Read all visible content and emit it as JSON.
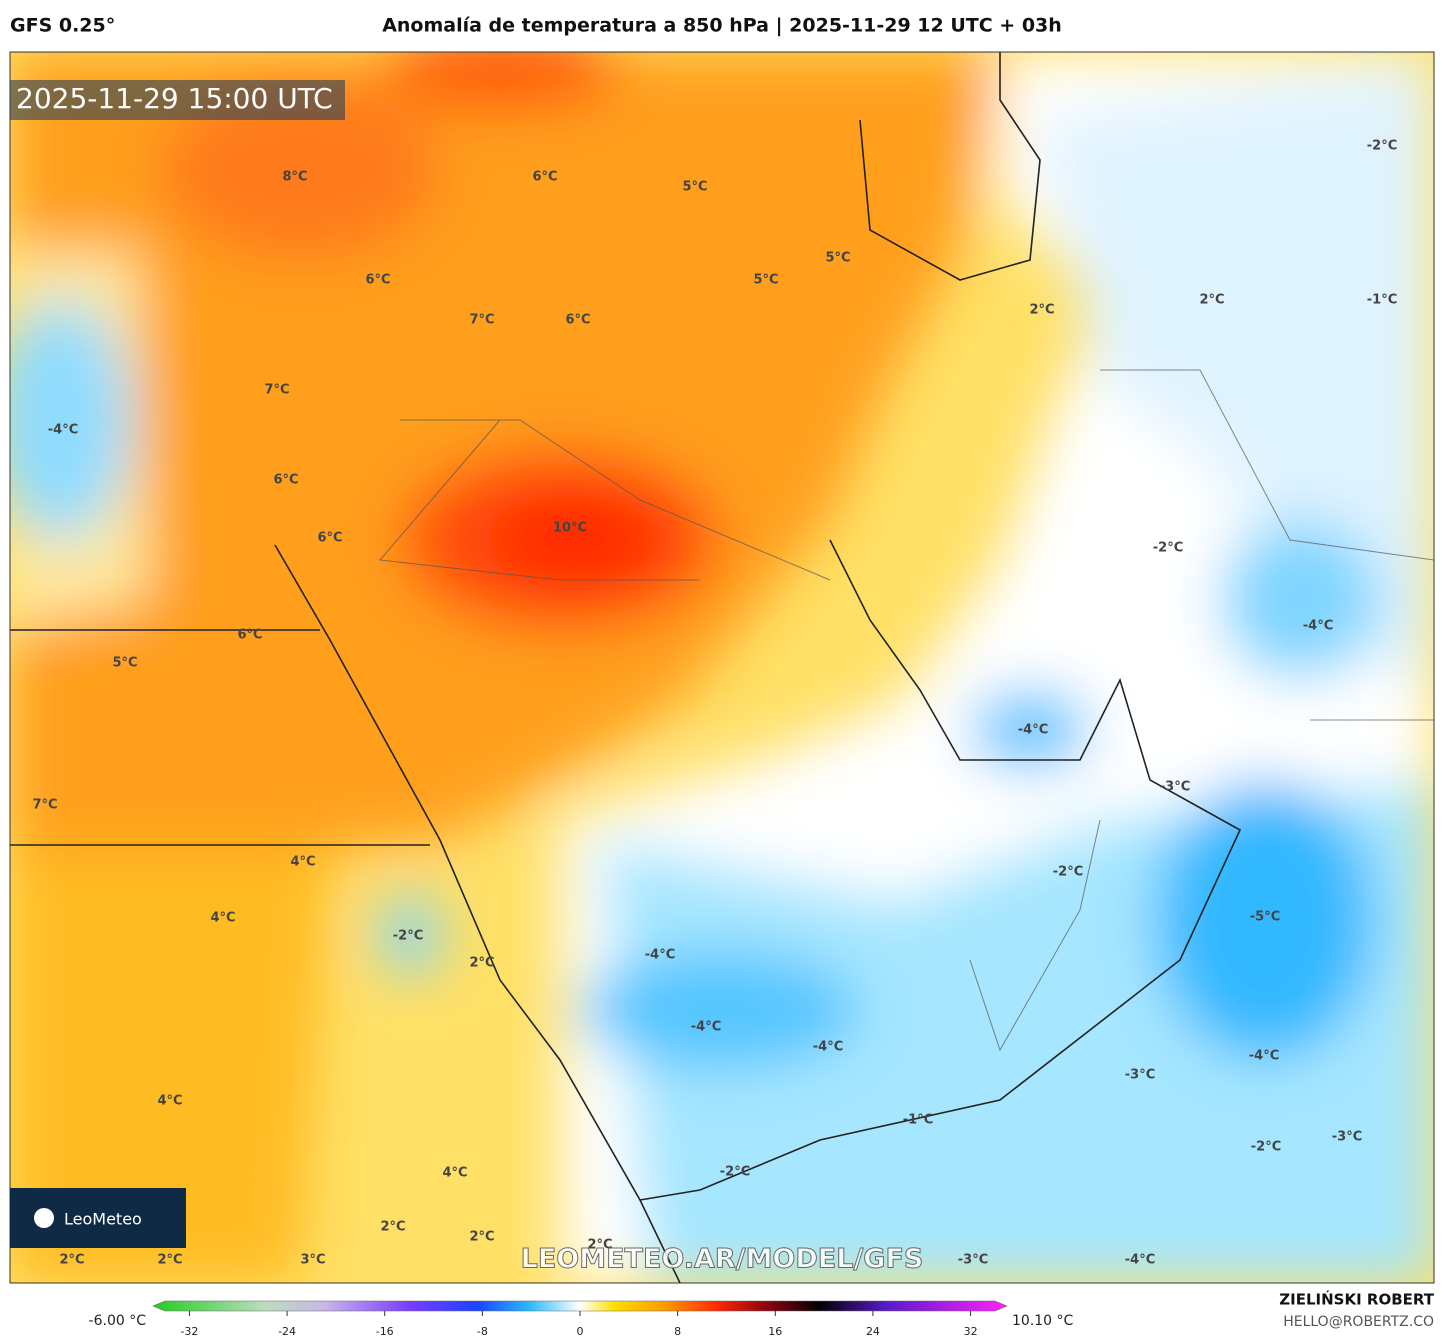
{
  "header": {
    "model": "GFS 0.25°",
    "title": "Anomalía de temperatura a 850 hPa | 2025-11-29 12 UTC + 03h"
  },
  "timestamp": "2025-11-29 15:00 UTC",
  "watermark": "LEOMETEO.AR/MODEL/GFS",
  "logo": "LeoMeteo",
  "contour_labels": [
    "8°C",
    "6°C",
    "5°C",
    "6°C",
    "5°C",
    "5°C",
    "2°C",
    "2°C",
    "-2°C",
    "-1°C",
    "7°C",
    "6°C",
    "7°C",
    "-4°C",
    "6°C",
    "10°C",
    "6°C",
    "-2°C",
    "-4°C",
    "6°C",
    "5°C",
    "-4°C",
    "-3°C",
    "7°C",
    "4°C",
    "-2°C",
    "4°C",
    "-5°C",
    "-2°C",
    "-4°C",
    "2°C",
    "-4°C",
    "-4°C",
    "-4°C",
    "-3°C",
    "4°C",
    "-1°C",
    "-2°C",
    "-3°C",
    "4°C",
    "-2°C",
    "2°C",
    "2°C",
    "2°C",
    "2°C",
    "3°C",
    "2°C",
    "-3°C",
    "-4°C"
  ],
  "colorbar": {
    "min_label": "-6.00 °C",
    "max_label": "10.10 °C",
    "lim": [
      -34,
      34
    ],
    "ticks": [
      -32,
      -24,
      -16,
      -8,
      0,
      8,
      16,
      24,
      32
    ]
  },
  "credit": {
    "author": "ZIELIŃSKI ROBERT",
    "email": "HELLO@ROBERTZ.CO"
  }
}
